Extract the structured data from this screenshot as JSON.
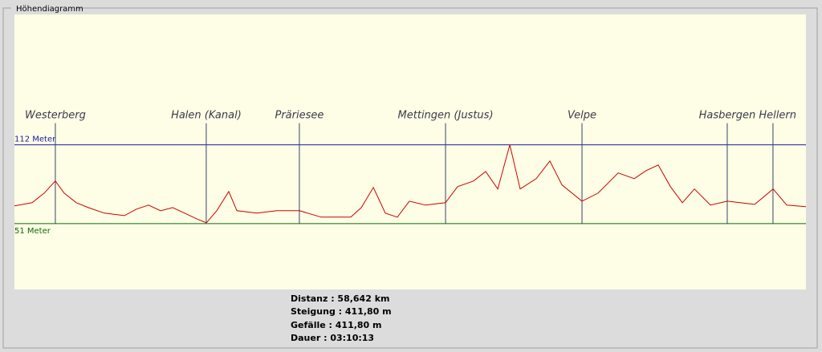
{
  "group_title": "Höhendiagramm",
  "chart_data": {
    "type": "line",
    "x": [
      0.0,
      1.31,
      2.2,
      3.03,
      3.69,
      4.58,
      5.47,
      6.66,
      8.15,
      9.04,
      9.93,
      10.83,
      11.72,
      12.61,
      13.5,
      14.22,
      14.99,
      15.88,
      16.48,
      17.96,
      19.45,
      21.12,
      22.72,
      24.92,
      25.7,
      26.59,
      27.48,
      28.37,
      29.26,
      30.45,
      31.94,
      32.83,
      34.02,
      34.91,
      35.81,
      36.7,
      37.47,
      38.66,
      39.67,
      40.57,
      42.05,
      43.24,
      44.73,
      45.92,
      46.81,
      47.7,
      48.6,
      49.49,
      50.38,
      51.57,
      52.82,
      54.84,
      56.21,
      57.22,
      58.64
    ],
    "values": [
      64.7,
      67.2,
      74.6,
      84.0,
      74.6,
      67.2,
      63.4,
      59.1,
      57.2,
      62.2,
      65.3,
      61.0,
      63.4,
      59.1,
      54.7,
      51.6,
      61.0,
      75.9,
      61.0,
      59.1,
      61.0,
      61.0,
      56.0,
      56.0,
      63.4,
      79.0,
      59.1,
      56.0,
      68.4,
      65.3,
      67.2,
      79.6,
      84.0,
      91.4,
      77.8,
      112.0,
      77.8,
      85.8,
      99.5,
      80.9,
      68.4,
      74.6,
      90.2,
      85.8,
      92.1,
      96.4,
      79.6,
      67.2,
      77.8,
      65.3,
      68.4,
      65.9,
      77.8,
      65.3,
      64.1
    ],
    "color": "#cc0000",
    "xlim": [
      0,
      58.642
    ],
    "ylim": [
      0,
      213
    ],
    "reference_lines": [
      {
        "value": 112,
        "label": "112 Meter",
        "color": "#1a1aa0"
      },
      {
        "value": 51,
        "label": "51 Meter",
        "color": "#0a6a0a"
      }
    ],
    "waypoints": [
      {
        "name": "Westerberg",
        "x": 3.03
      },
      {
        "name": "Halen (Kanal)",
        "x": 14.21
      },
      {
        "name": "Präriesee",
        "x": 21.11
      },
      {
        "name": "Mettingen (Justus)",
        "x": 31.94
      },
      {
        "name": "Velpe",
        "x": 42.05
      },
      {
        "name": "Hasbergen",
        "x": 52.81
      },
      {
        "name": "Hellern",
        "x": 56.2
      }
    ]
  },
  "stats": [
    "Distanz : 58,642 km",
    "Steigung : 411,80 m",
    "Gefälle : 411,80 m",
    "Dauer : 03:10:13"
  ]
}
